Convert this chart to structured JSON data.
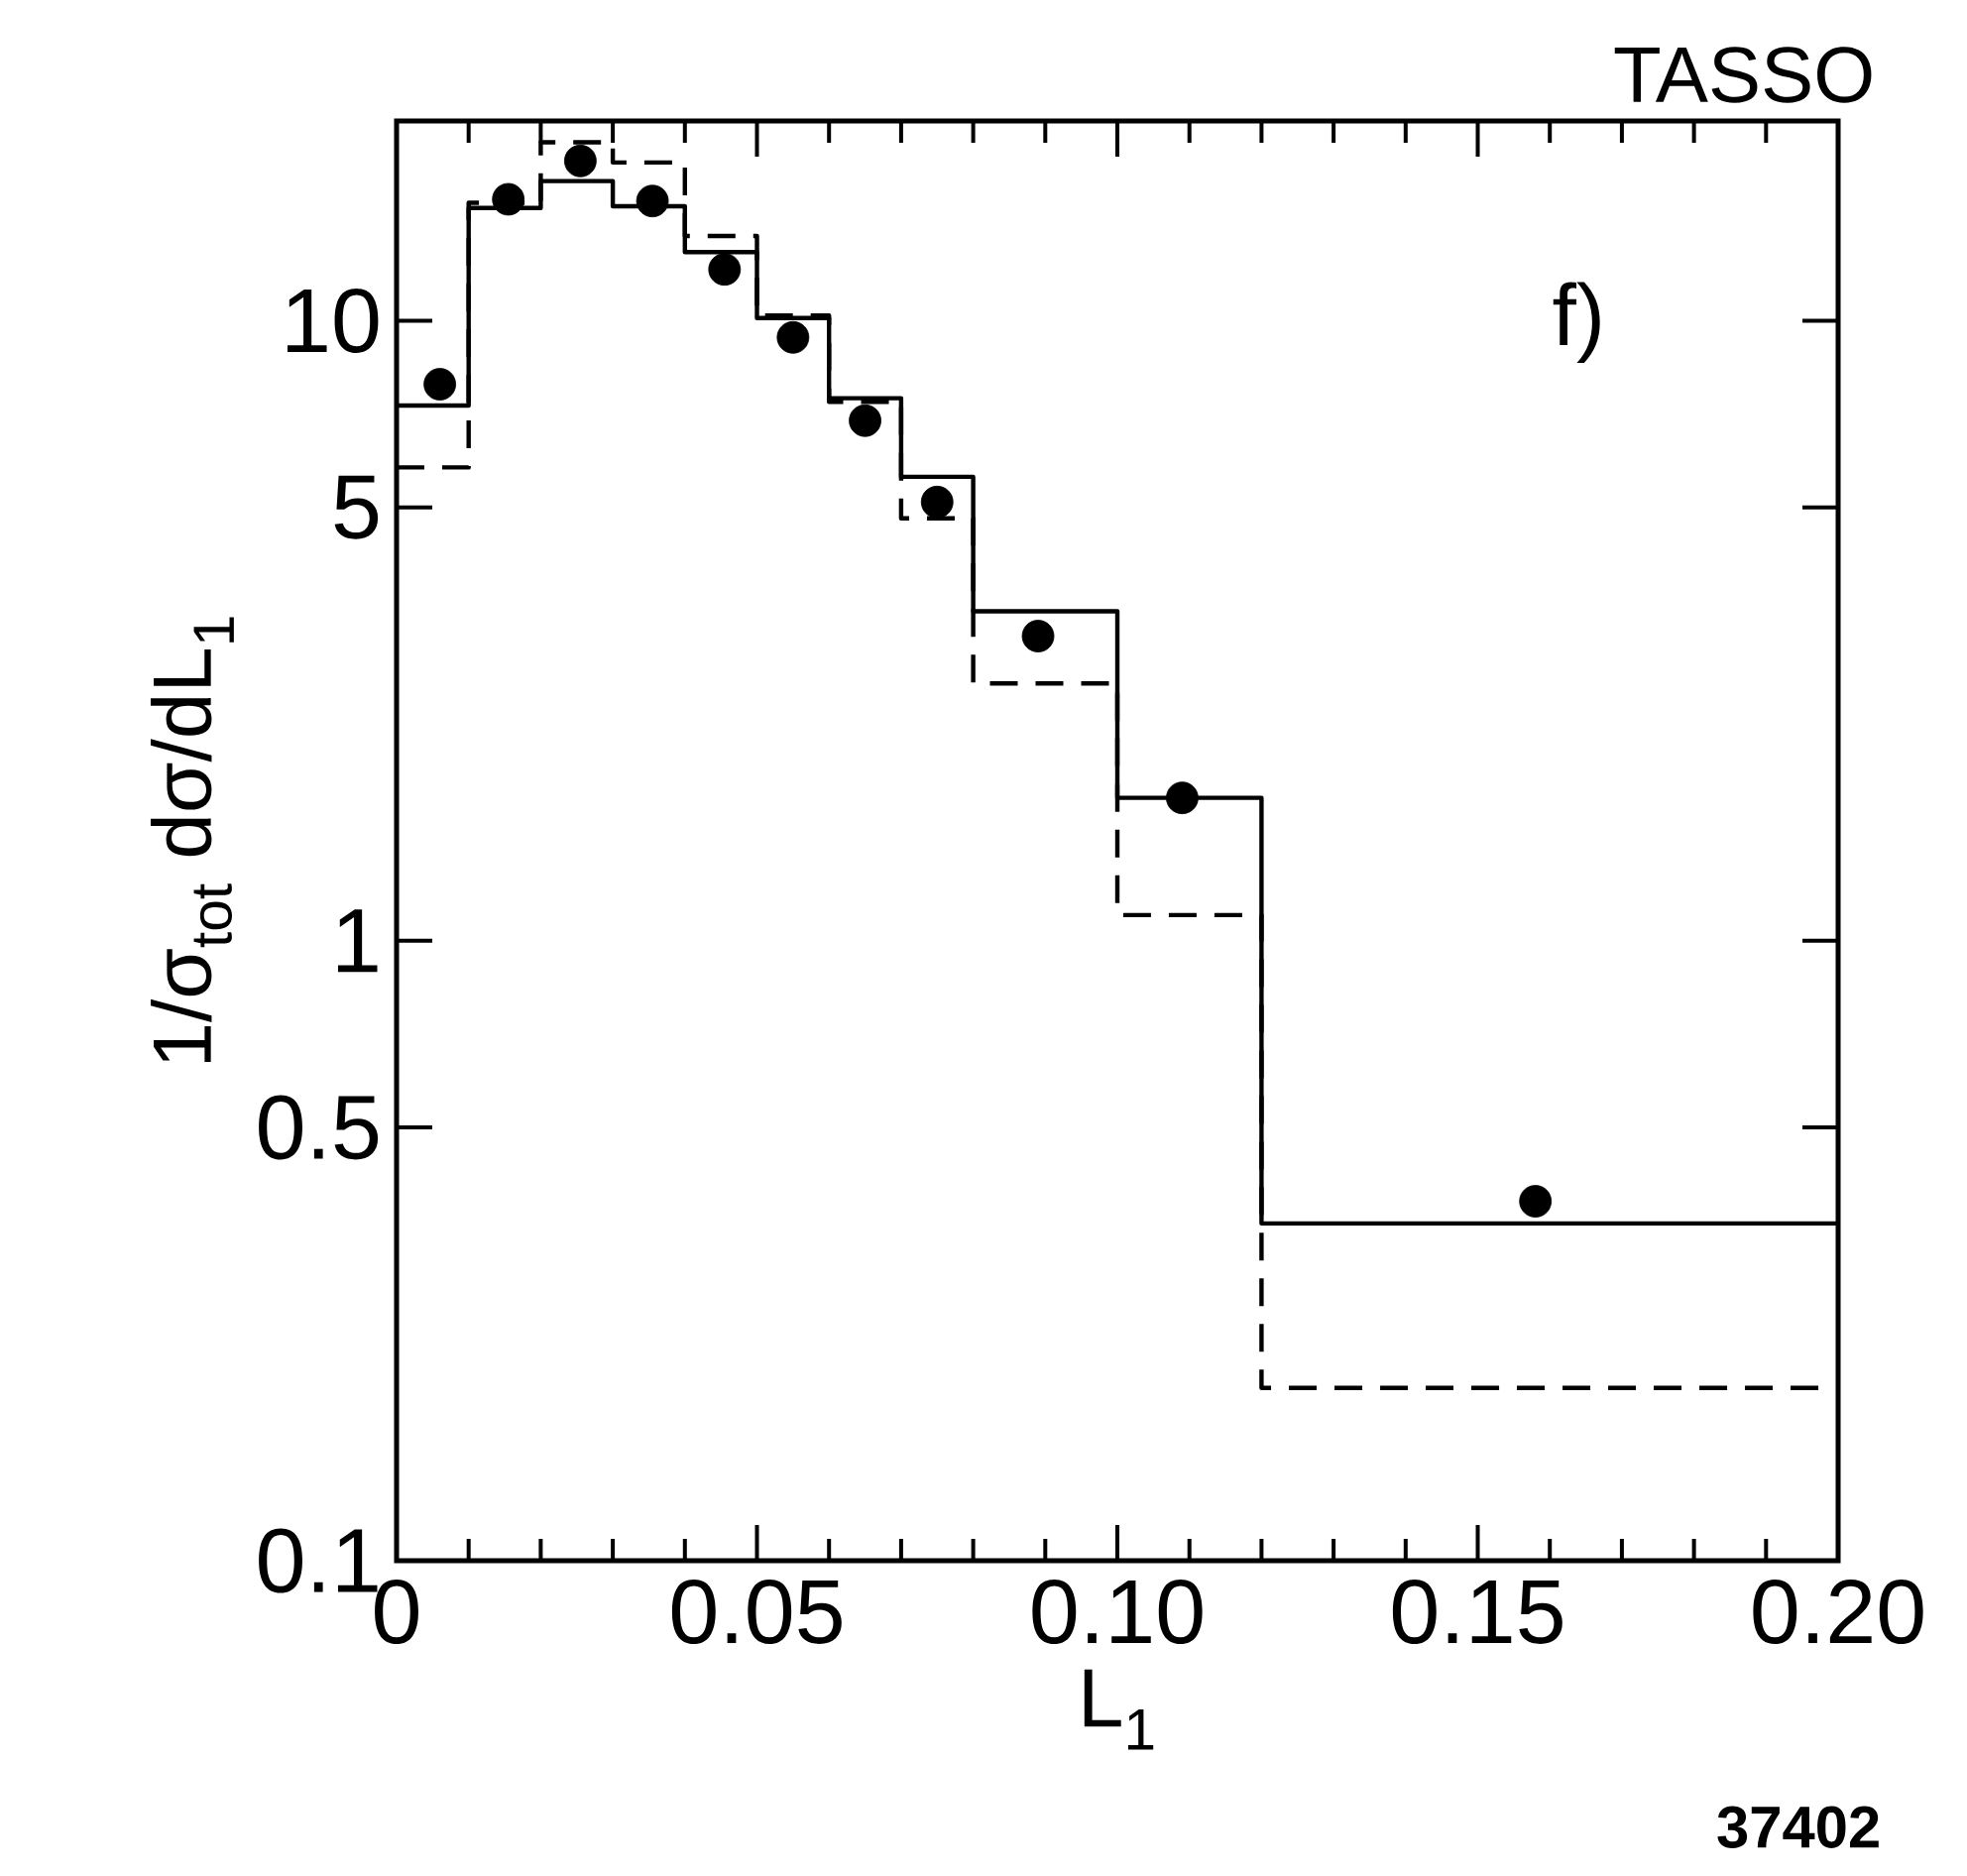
{
  "chart_data": {
    "type": "step",
    "title": "TASSO",
    "xlabel": "L$_{1}$",
    "ylabel": "1/σ$_{tot}$ dσ/dL$_{1}$",
    "annotations": [
      "f)",
      "37402"
    ],
    "series": [
      {
        "color": "#000000",
        "line_style": "solid",
        "x": [
          0,
          0.01,
          0.02,
          0.03,
          0.04,
          0.05,
          0.06,
          0.07,
          0.08,
          0.1,
          0.12,
          0.2
        ],
        "values": [
          7.3,
          15.2,
          16.8,
          15.3,
          12.9,
          10.1,
          7.5,
          5.6,
          3.4,
          1.7,
          0.35,
          0.35
        ]
      },
      {
        "color": "#000000",
        "line_style": "dashed",
        "x": [
          0,
          0.01,
          0.02,
          0.03,
          0.04,
          0.05,
          0.06,
          0.07,
          0.08,
          0.1,
          0.12,
          0.2
        ],
        "values": [
          5.8,
          15.5,
          19.4,
          18.0,
          13.7,
          10.2,
          7.4,
          4.8,
          2.6,
          1.1,
          0.19,
          0.19
        ]
      },
      {
        "type": "scatter",
        "color": "#000000",
        "x": [
          0.006,
          0.0155,
          0.0255,
          0.0355,
          0.0455,
          0.055,
          0.065,
          0.075,
          0.089,
          0.109,
          0.158
        ],
        "values": [
          7.9,
          15.7,
          18.1,
          15.6,
          12.1,
          9.4,
          6.9,
          5.1,
          3.1,
          1.7,
          0.38
        ]
      }
    ],
    "log": "y",
    "grid": false,
    "xlim": [
      0,
      0.2
    ],
    "ylim": [
      0.1,
      21
    ],
    "xticks": [
      0,
      0.05,
      {
        "value": 0.1,
        "label": "0.10"
      },
      0.15,
      {
        "value": 0.2,
        "label": "0.20"
      }
    ],
    "yticks": [
      0.1,
      0.5,
      1,
      5,
      10
    ]
  }
}
